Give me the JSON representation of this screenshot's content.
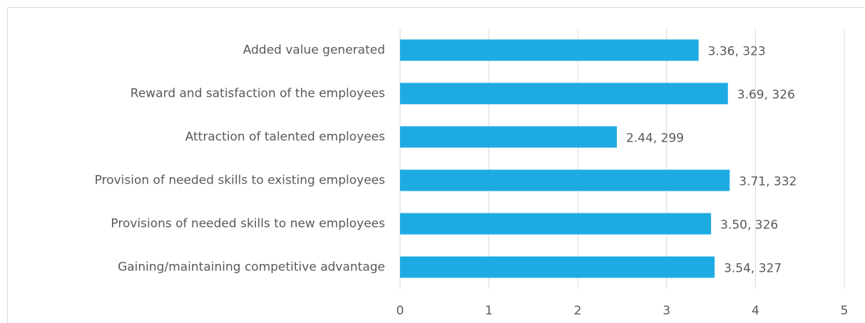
{
  "chart_data": {
    "type": "bar",
    "orientation": "horizontal",
    "categories": [
      "Added value generated",
      "Reward and satisfaction of the employees",
      "Attraction of talented employees",
      "Provision of needed skills to existing employees",
      "Provisions of needed skills to new employees",
      "Gaining/maintaining competitive advantage"
    ],
    "values": [
      3.36,
      3.69,
      2.44,
      3.71,
      3.5,
      3.54
    ],
    "value_labels": [
      "3.36, 323",
      "3.69, 326",
      "2.44, 299",
      "3.71, 332",
      "3.50, 326",
      "3.54, 327"
    ],
    "color": "#1eabe3",
    "xlim": [
      0,
      5
    ],
    "xticks": [
      0,
      1,
      2,
      3,
      4,
      5
    ],
    "grid": true
  }
}
